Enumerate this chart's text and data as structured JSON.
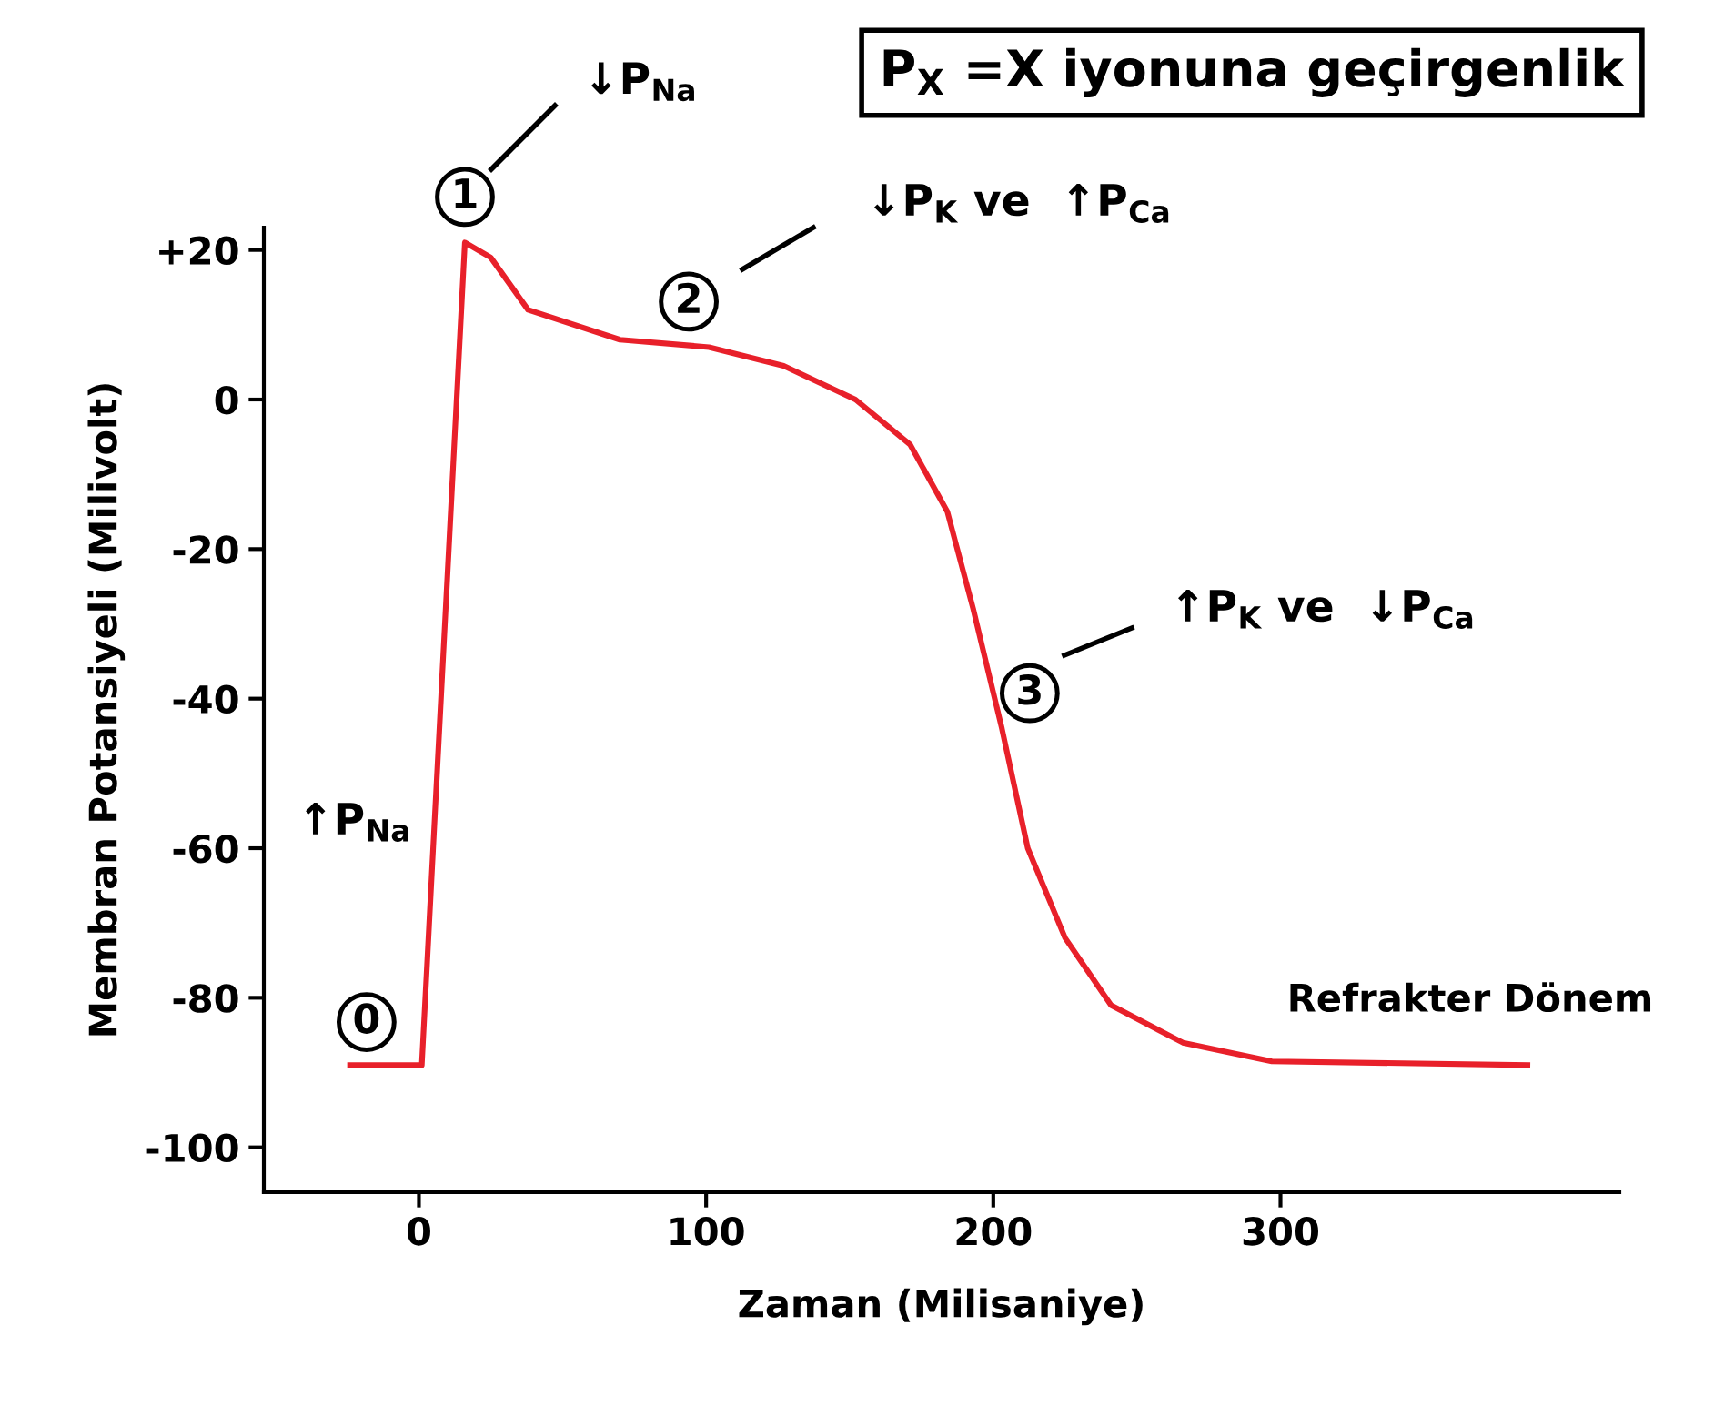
{
  "chart_data": {
    "type": "line",
    "xlabel": "Zaman (Milisaniye)",
    "ylabel": "Membran Potansiyeli (Milivolt)",
    "x": [
      -24,
      1,
      16,
      25,
      38,
      70,
      101,
      127,
      152,
      171,
      184,
      193,
      203,
      212,
      225,
      241,
      266,
      297,
      386
    ],
    "series": [
      {
        "color": "#e8202a",
        "values": [
          -89,
          -89,
          21,
          19,
          12,
          8,
          7,
          4.5,
          0,
          -6,
          -15,
          -28,
          -44,
          -60,
          -72,
          -81,
          -86,
          -88.5,
          -89
        ]
      }
    ],
    "xlim": [
      -54,
      418
    ],
    "ylim": [
      -106,
      23
    ],
    "xticks": [
      0,
      100,
      200,
      300
    ],
    "yticks": [
      -100,
      -80,
      -60,
      -40,
      -20,
      0,
      {
        "value": 20,
        "label": "+20"
      }
    ],
    "grid": false,
    "legend": false,
    "marker": "none",
    "line_style": "solid",
    "annotations": [
      {
        "text": "0",
        "x": -20,
        "y": -89
      },
      {
        "text": "1",
        "x": 16,
        "y": 21
      },
      {
        "text": "2",
        "x": 101,
        "y": 7
      },
      {
        "text": "3",
        "x": 203,
        "y": -44
      },
      "P$_{X}$ =X iyonuna geçirgenlik",
      "↓P$_{Na}$",
      "↓P$_{K}$ ve  ↑P$_{Ca}$",
      "↑P$_{K}$ ve  ↓P$_{Ca}$",
      "↑P$_{Na}$",
      "Refrakter Dönem"
    ]
  }
}
